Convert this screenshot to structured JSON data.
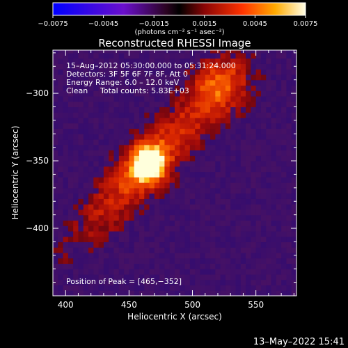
{
  "colorbar": {
    "ticks": [
      "−0.0075",
      "−0.0045",
      "−0.0015",
      "0.0015",
      "0.0045",
      "0.0075"
    ],
    "unit_label": "(photons cm⁻² s⁻¹ asec⁻²)",
    "range": [
      -0.0075,
      0.0075
    ]
  },
  "chart_data": {
    "type": "heatmap",
    "title": "Reconstructed RHESSI Image",
    "xlabel": "Heliocentric X (arcsec)",
    "ylabel": "Heliocentric Y (arcsec)",
    "xlim": [
      390,
      582
    ],
    "ylim": [
      -450,
      -268
    ],
    "xticks": [
      400,
      450,
      500,
      550
    ],
    "yticks": [
      -300,
      -350,
      -400
    ],
    "xtick_labels": [
      "400",
      "450",
      "500",
      "550"
    ],
    "ytick_labels": [
      "−300",
      "−350",
      "−400"
    ],
    "peak": [
      465,
      -352
    ],
    "secondary_source": [
      522,
      -293
    ],
    "annotations": {
      "time": "15–Aug–2012 05:30:00.000 to 05:31:24.000",
      "detectors": "Detectors: 3F 5F 6F 7F 8F, Att 0",
      "energy": "Energy Range: 6.0 – 12.0 keV",
      "clean_label": "Clean",
      "counts": "Total counts: 5.83E+03",
      "peak": "Position of Peak = [465,−352]"
    },
    "grid": false
  },
  "footer": {
    "timestamp": "13–May–2022 15:41"
  }
}
